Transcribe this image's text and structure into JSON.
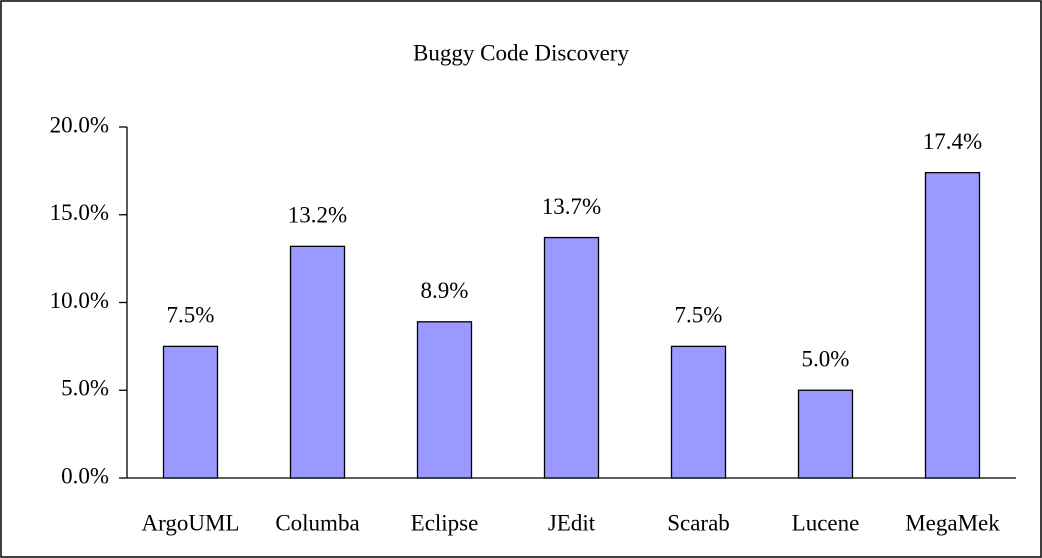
{
  "chart_data": {
    "type": "bar",
    "title": "Buggy Code Discovery",
    "categories": [
      "ArgoUML",
      "Columba",
      "Eclipse",
      "JEdit",
      "Scarab",
      "Lucene",
      "MegaMek"
    ],
    "values": [
      7.5,
      13.2,
      8.9,
      13.7,
      7.5,
      5.0,
      17.4
    ],
    "value_labels": [
      "7.5%",
      "13.2%",
      "8.9%",
      "13.7%",
      "7.5%",
      "5.0%",
      "17.4%"
    ],
    "color": "#9999ff",
    "ylim": [
      0,
      20
    ],
    "yticks": [
      {
        "value": 0,
        "label": "0.0%"
      },
      {
        "value": 5,
        "label": "5.0%"
      },
      {
        "value": 10,
        "label": "10.0%"
      },
      {
        "value": 15,
        "label": "15.0%"
      },
      {
        "value": 20,
        "label": "20.0%"
      }
    ],
    "grid": false
  }
}
